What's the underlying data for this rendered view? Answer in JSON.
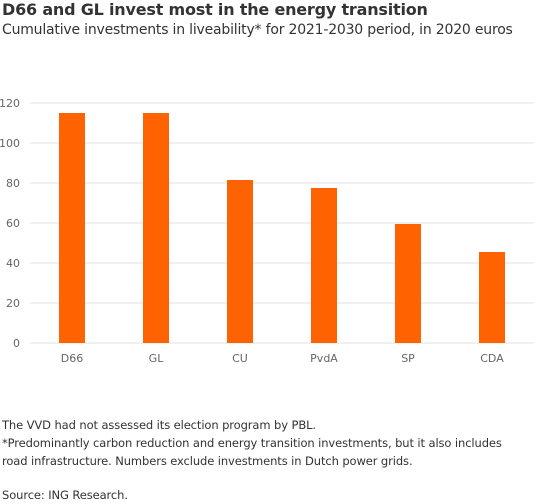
{
  "title": "D66 and GL invest most in the energy transition",
  "subtitle": "Cumulative investments in liveability* for 2021-2030 period, in 2020 euros",
  "notes": {
    "line1": "The VVD had not assessed its election program  by PBL.",
    "line2": "*Predominantly carbon reduction and energy transition investments, but it also includes",
    "line3": "road infrastructure. Numbers exclude investments in Dutch power grids."
  },
  "source": "Source: ING Research.",
  "colors": {
    "bar": "#FF6200",
    "grid": "#e2e2e2",
    "text": "#333333",
    "tick": "#666666"
  },
  "chart_data": {
    "type": "bar",
    "title": "D66 and GL invest most in the energy transition",
    "subtitle": "Cumulative investments in liveability* for 2021-2030 period, in 2020 euros",
    "xlabel": "",
    "ylabel": "",
    "ylim": [
      0,
      120
    ],
    "yticks": [
      0,
      20,
      40,
      60,
      80,
      100,
      120
    ],
    "grid": true,
    "categories": [
      "D66",
      "GL",
      "CU",
      "PvdA",
      "SP",
      "CDA"
    ],
    "values": [
      115,
      115,
      81.5,
      77.5,
      59.5,
      45.5
    ]
  }
}
